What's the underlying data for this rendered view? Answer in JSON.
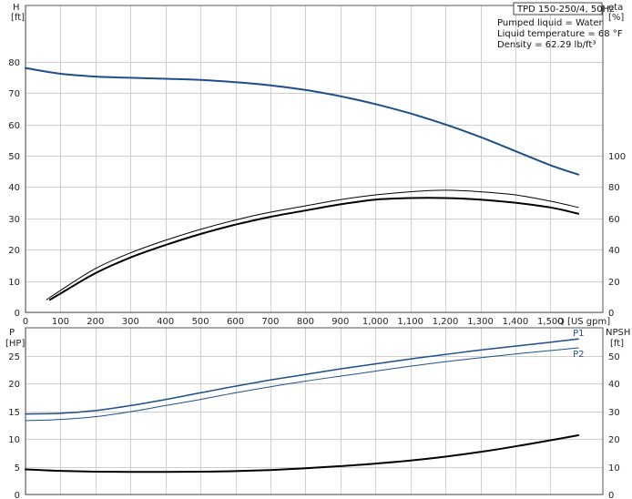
{
  "chart_data": {
    "type": "line",
    "title": "TPD 150-250/4, 50Hz",
    "info_lines": [
      "Pumped liquid = Water",
      "Liquid temperature = 68 °F",
      "Density = 62.29 lb/ft³"
    ],
    "grid": true,
    "x_axis": {
      "label": "Q [US gpm]",
      "range": [
        0,
        1650
      ],
      "ticks": [
        0,
        100,
        200,
        300,
        400,
        500,
        600,
        700,
        800,
        900,
        1000,
        1100,
        1200,
        1300,
        1400,
        1500
      ],
      "tick_labels": [
        "0",
        "100",
        "200",
        "300",
        "400",
        "500",
        "600",
        "700",
        "800",
        "900",
        "1,000",
        "1,100",
        "1,200",
        "1,300",
        "1,400",
        "1,500"
      ]
    },
    "top_panel": {
      "left_axis": {
        "label_line1": "H",
        "label_line2": "[ft]",
        "range": [
          0,
          98
        ],
        "ticks": [
          0,
          10,
          20,
          30,
          40,
          50,
          60,
          70,
          80
        ]
      },
      "right_axis": {
        "label_line1": "eta",
        "label_line2": "[%]",
        "range": [
          0,
          196
        ],
        "ticks": [
          0,
          20,
          40,
          60,
          80,
          100
        ]
      },
      "series": [
        {
          "axis": "left",
          "color": "#1c4f8c",
          "width": 2,
          "x": [
            0,
            100,
            200,
            300,
            400,
            500,
            600,
            700,
            800,
            900,
            1000,
            1100,
            1200,
            1300,
            1400,
            1500,
            1580
          ],
          "y": [
            78,
            76.2,
            75.3,
            74.9,
            74.6,
            74.2,
            73.5,
            72.5,
            71,
            69,
            66.5,
            63.5,
            60,
            56,
            51.5,
            47,
            44
          ]
        },
        {
          "axis": "right",
          "color": "#000000",
          "width": 1,
          "x": [
            60,
            100,
            200,
            300,
            400,
            500,
            600,
            700,
            800,
            900,
            1000,
            1100,
            1200,
            1300,
            1400,
            1500,
            1580
          ],
          "y": [
            8,
            14,
            28,
            38,
            46,
            53,
            59,
            64,
            68,
            72,
            75,
            77,
            78,
            77,
            75,
            71,
            67
          ]
        },
        {
          "axis": "right",
          "color": "#000000",
          "width": 2,
          "x": [
            70,
            100,
            200,
            300,
            400,
            500,
            600,
            700,
            800,
            900,
            1000,
            1100,
            1200,
            1300,
            1400,
            1500,
            1580
          ],
          "y": [
            8,
            12,
            25,
            35,
            43,
            50,
            56,
            61,
            65,
            69,
            72,
            73,
            73,
            72,
            70,
            67,
            63
          ]
        }
      ]
    },
    "bottom_panel": {
      "left_axis": {
        "label_line1": "P",
        "label_line2": "[HP]",
        "range": [
          0,
          30
        ],
        "ticks": [
          0,
          5,
          10,
          15,
          20,
          25
        ]
      },
      "right_axis": {
        "label_line1": "NPSH",
        "label_line2": "[ft]",
        "range": [
          0,
          60
        ],
        "ticks": [
          0,
          10,
          20,
          30,
          40,
          50
        ]
      },
      "series": [
        {
          "name": "P1",
          "axis": "left",
          "color": "#1c4f8c",
          "width": 1.5,
          "x": [
            0,
            100,
            200,
            300,
            400,
            500,
            600,
            700,
            800,
            900,
            1000,
            1100,
            1200,
            1300,
            1400,
            1500,
            1580
          ],
          "y": [
            14.5,
            14.6,
            15.1,
            16,
            17.1,
            18.3,
            19.5,
            20.6,
            21.6,
            22.6,
            23.5,
            24.4,
            25.2,
            26,
            26.7,
            27.4,
            28
          ]
        },
        {
          "name": "P2",
          "axis": "left",
          "color": "#1c4f8c",
          "width": 1,
          "x": [
            0,
            100,
            200,
            300,
            400,
            500,
            600,
            700,
            800,
            900,
            1000,
            1100,
            1200,
            1300,
            1400,
            1500,
            1580
          ],
          "y": [
            13.3,
            13.5,
            14,
            14.9,
            16,
            17.1,
            18.3,
            19.4,
            20.4,
            21.3,
            22.2,
            23.1,
            23.9,
            24.6,
            25.3,
            25.9,
            26.4
          ]
        },
        {
          "axis": "right",
          "color": "#000000",
          "width": 2,
          "x": [
            0,
            100,
            200,
            300,
            400,
            500,
            600,
            700,
            800,
            900,
            1000,
            1100,
            1200,
            1300,
            1400,
            1500,
            1580
          ],
          "y": [
            9,
            8.5,
            8.2,
            8.1,
            8.1,
            8.2,
            8.4,
            8.8,
            9.4,
            10.2,
            11.1,
            12.2,
            13.6,
            15.3,
            17.3,
            19.5,
            21.3
          ]
        }
      ]
    }
  }
}
